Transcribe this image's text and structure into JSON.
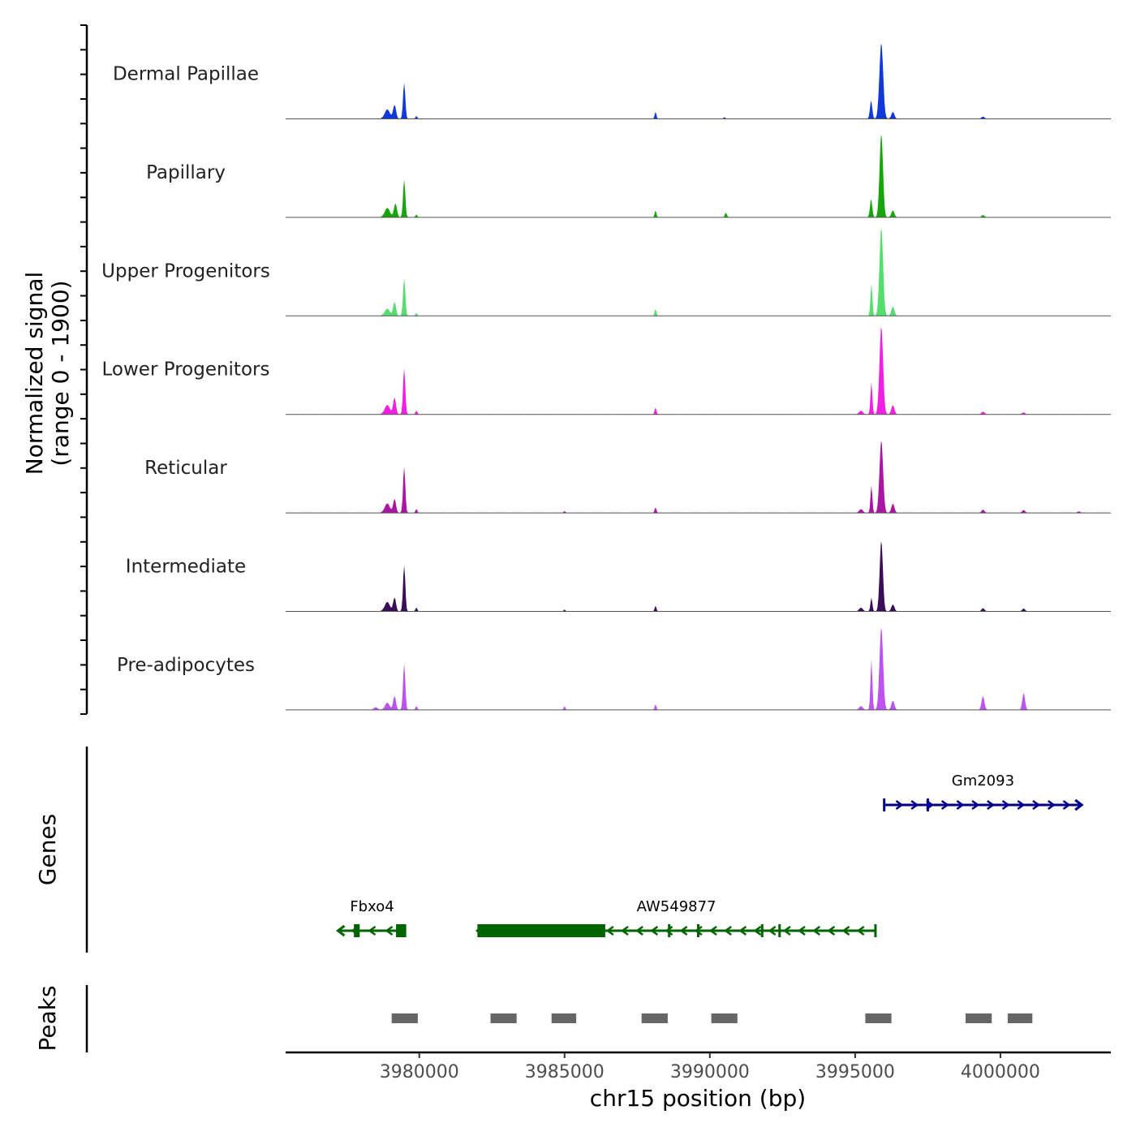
{
  "chart_data": {
    "type": "area",
    "title": "",
    "xlabel": "chr15 position (bp)",
    "chromosome": "chr15",
    "xlim": [
      3975400,
      4003800
    ],
    "x_ticks": [
      3980000,
      3985000,
      3990000,
      3995000,
      4000000
    ],
    "x_tick_labels": [
      "3980000",
      "3985000",
      "3990000",
      "3995000",
      "4000000"
    ],
    "signal_ylabel_line1": "Normalized signal",
    "signal_ylabel_line2": "(range 0 - 1900)",
    "signal_range": [
      0,
      1900
    ],
    "series": [
      {
        "name": "Dermal Papillae",
        "color": "#1139d9",
        "peaks": [
          [
            3978900,
            200,
            280
          ],
          [
            3979150,
            300,
            160
          ],
          [
            3979480,
            780,
            120
          ],
          [
            3979900,
            60,
            100
          ],
          [
            3988130,
            150,
            90
          ],
          [
            3990500,
            40,
            90
          ],
          [
            3995550,
            400,
            120
          ],
          [
            3995900,
            1650,
            200
          ],
          [
            3996300,
            150,
            160
          ],
          [
            3999400,
            50,
            150
          ]
        ]
      },
      {
        "name": "Papillary",
        "color": "#16a60b",
        "peaks": [
          [
            3978900,
            200,
            280
          ],
          [
            3979180,
            300,
            160
          ],
          [
            3979480,
            820,
            120
          ],
          [
            3979900,
            60,
            100
          ],
          [
            3988130,
            150,
            90
          ],
          [
            3990550,
            100,
            110
          ],
          [
            3995550,
            400,
            120
          ],
          [
            3995900,
            1820,
            180
          ],
          [
            3996300,
            150,
            160
          ],
          [
            3999400,
            50,
            150
          ]
        ]
      },
      {
        "name": "Upper Progenitors",
        "color": "#55dd6d",
        "peaks": [
          [
            3978900,
            150,
            280
          ],
          [
            3979150,
            300,
            150
          ],
          [
            3979480,
            820,
            120
          ],
          [
            3979900,
            60,
            100
          ],
          [
            3988130,
            150,
            90
          ],
          [
            3995560,
            700,
            100
          ],
          [
            3995900,
            1920,
            190
          ],
          [
            3996300,
            200,
            160
          ]
        ]
      },
      {
        "name": "Lower Progenitors",
        "color": "#f21ee3",
        "peaks": [
          [
            3978900,
            200,
            280
          ],
          [
            3979150,
            360,
            150
          ],
          [
            3979480,
            1000,
            120
          ],
          [
            3979900,
            80,
            100
          ],
          [
            3988130,
            150,
            90
          ],
          [
            3995200,
            80,
            200
          ],
          [
            3995560,
            700,
            100
          ],
          [
            3995900,
            1920,
            190
          ],
          [
            3996300,
            200,
            160
          ],
          [
            3999400,
            60,
            150
          ],
          [
            4000800,
            40,
            150
          ]
        ]
      },
      {
        "name": "Reticular",
        "color": "#ab15a3",
        "peaks": [
          [
            3978900,
            200,
            280
          ],
          [
            3979150,
            300,
            150
          ],
          [
            3979480,
            1000,
            120
          ],
          [
            3979900,
            80,
            100
          ],
          [
            3985000,
            40,
            90
          ],
          [
            3988130,
            120,
            90
          ],
          [
            3995200,
            80,
            200
          ],
          [
            3995560,
            600,
            100
          ],
          [
            3995900,
            1580,
            190
          ],
          [
            3996300,
            200,
            160
          ],
          [
            3999400,
            70,
            150
          ],
          [
            4000800,
            60,
            150
          ],
          [
            4002700,
            30,
            150
          ]
        ]
      },
      {
        "name": "Intermediate",
        "color": "#3b0c59",
        "peaks": [
          [
            3978900,
            200,
            280
          ],
          [
            3979150,
            300,
            150
          ],
          [
            3979480,
            1000,
            120
          ],
          [
            3979900,
            80,
            100
          ],
          [
            3985000,
            40,
            90
          ],
          [
            3988130,
            120,
            90
          ],
          [
            3995200,
            80,
            200
          ],
          [
            3995560,
            300,
            100
          ],
          [
            3995900,
            1540,
            170
          ],
          [
            3996300,
            150,
            160
          ],
          [
            3999400,
            70,
            150
          ],
          [
            4000800,
            60,
            150
          ]
        ]
      },
      {
        "name": "Pre-adipocytes",
        "color": "#bc53f0",
        "peaks": [
          [
            3978500,
            60,
            200
          ],
          [
            3978900,
            150,
            250
          ],
          [
            3979150,
            300,
            150
          ],
          [
            3979480,
            1000,
            120
          ],
          [
            3979900,
            80,
            100
          ],
          [
            3985000,
            80,
            90
          ],
          [
            3988130,
            120,
            90
          ],
          [
            3995200,
            80,
            200
          ],
          [
            3995560,
            1100,
            100
          ],
          [
            3995900,
            1800,
            190
          ],
          [
            3996300,
            200,
            160
          ],
          [
            3999400,
            300,
            150
          ],
          [
            4000800,
            370,
            140
          ]
        ]
      }
    ],
    "genes_label": "Genes",
    "genes": [
      {
        "name": "Gm2093",
        "strand": "+",
        "color": "#00008b",
        "start": 3996000,
        "end": 4002800,
        "thick": [],
        "exon_marks": [
          3996000,
          3997500
        ]
      },
      {
        "name": "Fbxo4",
        "strand": "-",
        "color": "#006400",
        "start": 3977200,
        "end": 3979550,
        "thick": [
          [
            3977750,
            3977950
          ],
          [
            3979200,
            3979550
          ]
        ],
        "exon_marks": []
      },
      {
        "name": "AW549877",
        "strand": "-",
        "color": "#006400",
        "start": 3982000,
        "end": 3995700,
        "thick": [
          [
            3982000,
            3986400
          ]
        ],
        "exon_marks": [
          3988600,
          3989600,
          3991800,
          3992400,
          3995700
        ]
      }
    ],
    "peaks_label": "Peaks",
    "peak_regions": [
      [
        3979050,
        3979950
      ],
      [
        3982450,
        3983350
      ],
      [
        3984550,
        3985400
      ],
      [
        3987650,
        3988550
      ],
      [
        3990050,
        3990950
      ],
      [
        3995350,
        3996250
      ],
      [
        3998800,
        3999700
      ],
      [
        4000250,
        4001100
      ]
    ],
    "peak_color": "#666666"
  }
}
